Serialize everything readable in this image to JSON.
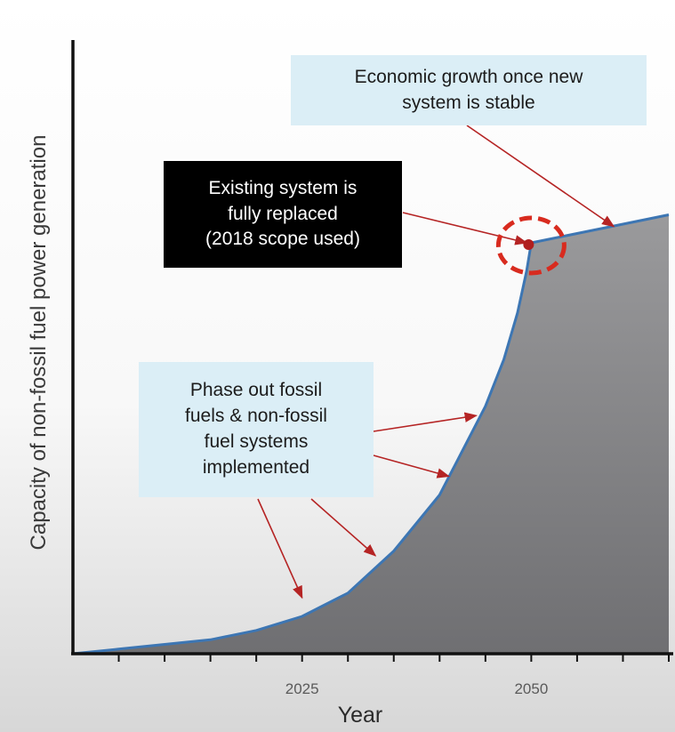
{
  "chart_data": {
    "type": "area",
    "xlabel": "Year",
    "ylabel": "Capacity of non-fossil fuel power generation",
    "xlim": [
      2000,
      2065
    ],
    "ylim": [
      0,
      100
    ],
    "x_tick_labels": [
      2025,
      2050
    ],
    "x_minor_ticks": [
      2005,
      2010,
      2015,
      2020,
      2025,
      2030,
      2035,
      2040,
      2045,
      2050,
      2055,
      2060,
      2065
    ],
    "series": [
      {
        "x": [
          2000,
          2005,
          2010,
          2015,
          2020,
          2025,
          2030,
          2035,
          2040,
          2045,
          2047,
          2048.5,
          2049.5,
          2050,
          2055,
          2060,
          2065
        ],
        "values": [
          0,
          1,
          2,
          3,
          5,
          8,
          13,
          22,
          34,
          53,
          63,
          73,
          82,
          88,
          90,
          92,
          94
        ]
      }
    ],
    "annotations": [
      {
        "text": "Economic growth once new\nsystem is stable",
        "style": "light",
        "arrows_to": [
          [
            2059,
            91.5
          ]
        ]
      },
      {
        "text": "Existing system is\nfully replaced\n(2018 scope used)",
        "style": "dark",
        "arrows_to": [
          [
            2049.5,
            88
          ]
        ]
      },
      {
        "text": "Phase out fossil\nfuels & non-fossil\nfuel systems\nimplemented",
        "style": "light",
        "arrows_to": [
          [
            2044,
            51
          ],
          [
            2041,
            38
          ],
          [
            2033,
            21
          ],
          [
            2025,
            12
          ]
        ]
      }
    ],
    "highlight_point": [
      2050,
      88
    ],
    "grid": false,
    "legend": false
  },
  "colors": {
    "fill_top": "#9a9a9c",
    "fill_bottom": "#6f6f72",
    "curve": "#3d76b3",
    "axis": "#111111",
    "arrow": "#b52424",
    "highlight": "#d82b1f",
    "box_light": "#dbeef6",
    "box_dark": "#000000"
  }
}
